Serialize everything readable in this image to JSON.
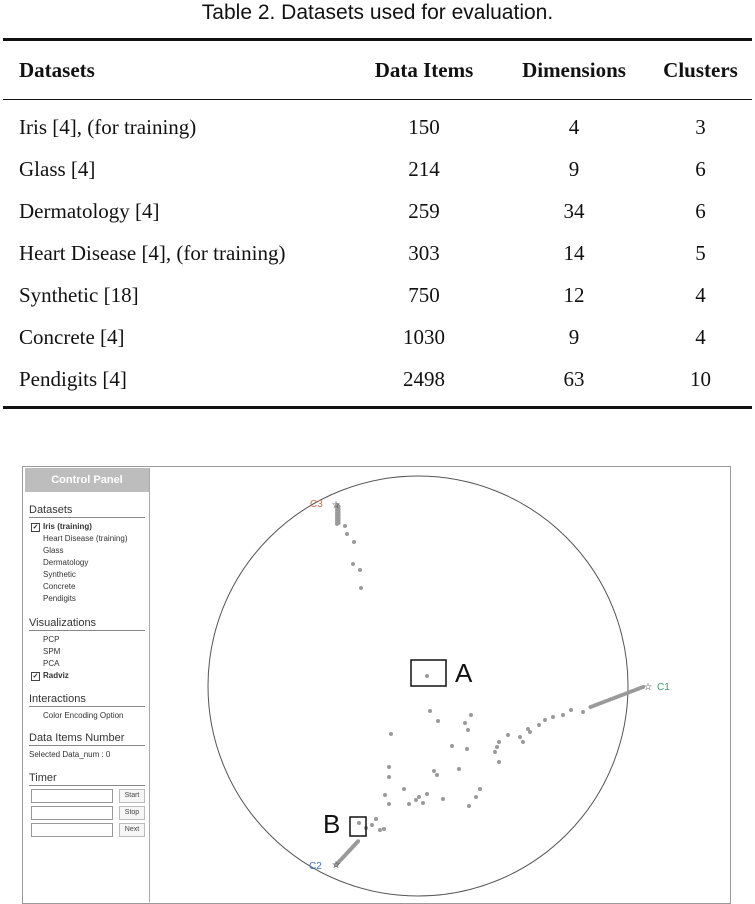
{
  "caption": "Table 2. Datasets used for evaluation.",
  "table": {
    "headers": [
      "Datasets",
      "Data Items",
      "Dimensions",
      "Clusters"
    ],
    "rows": [
      [
        "Iris [4], (for training)",
        "150",
        "4",
        "3"
      ],
      [
        "Glass [4]",
        "214",
        "9",
        "6"
      ],
      [
        "Dermatology [4]",
        "259",
        "34",
        "6"
      ],
      [
        "Heart Disease [4], (for training)",
        "303",
        "14",
        "5"
      ],
      [
        "Synthetic [18]",
        "750",
        "12",
        "4"
      ],
      [
        "Concrete [4]",
        "1030",
        "9",
        "4"
      ],
      [
        "Pendigits [4]",
        "2498",
        "63",
        "10"
      ]
    ]
  },
  "control_panel": {
    "title": "Control Panel",
    "datasets": {
      "heading": "Datasets",
      "items": [
        "Iris (training)",
        "Heart Disease (training)",
        "Glass",
        "Dermatology",
        "Synthetic",
        "Concrete",
        "Pendigits"
      ],
      "checked_index": 0
    },
    "visualizations": {
      "heading": "Visualizations",
      "items": [
        "PCP",
        "SPM",
        "PCA",
        "Radviz"
      ],
      "checked_index": 3
    },
    "interactions": {
      "heading": "Interactions",
      "items": [
        "Color Encoding Option"
      ]
    },
    "data_items": {
      "heading": "Data Items Number",
      "text": "Selected Data_num : 0"
    },
    "timer": {
      "heading": "Timer",
      "buttons": [
        "Start",
        "Stop",
        "Next"
      ]
    }
  },
  "radviz": {
    "anchors": [
      {
        "label": "C3",
        "color": "#d4674c"
      },
      {
        "label": "C1",
        "color": "#3b9a6a"
      },
      {
        "label": "C2",
        "color": "#3d6fb8"
      }
    ],
    "annotations": [
      "A",
      "B"
    ],
    "point_color": "#9a9a9a"
  }
}
